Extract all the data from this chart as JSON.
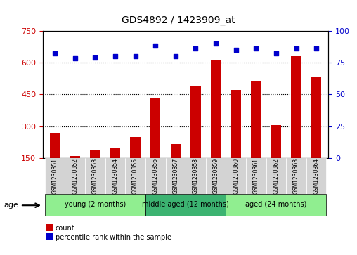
{
  "title": "GDS4892 / 1423909_at",
  "samples": [
    "GSM1230351",
    "GSM1230352",
    "GSM1230353",
    "GSM1230354",
    "GSM1230355",
    "GSM1230356",
    "GSM1230357",
    "GSM1230358",
    "GSM1230359",
    "GSM1230360",
    "GSM1230361",
    "GSM1230362",
    "GSM1230363",
    "GSM1230364"
  ],
  "counts": [
    270,
    160,
    190,
    200,
    250,
    430,
    215,
    490,
    610,
    470,
    510,
    305,
    630,
    535
  ],
  "percentiles": [
    82,
    78,
    79,
    80,
    80,
    88,
    80,
    86,
    90,
    85,
    86,
    82,
    86,
    86
  ],
  "groups": [
    {
      "label": "young (2 months)",
      "start": 0,
      "end": 4,
      "color": "#90EE90"
    },
    {
      "label": "middle aged (12 months)",
      "start": 5,
      "end": 8,
      "color": "#3CB371"
    },
    {
      "label": "aged (24 months)",
      "start": 9,
      "end": 13,
      "color": "#90EE90"
    }
  ],
  "ylim_left": [
    150,
    750
  ],
  "yticks_left": [
    150,
    300,
    450,
    600,
    750
  ],
  "ylim_right": [
    0,
    100
  ],
  "yticks_right": [
    0,
    25,
    50,
    75,
    100
  ],
  "bar_color": "#CC0000",
  "dot_color": "#0000CC",
  "bar_width": 0.5,
  "grid_color": "black",
  "bg_color": "#D3D3D3",
  "age_label": "age",
  "legend_count": "count",
  "legend_pct": "percentile rank within the sample"
}
